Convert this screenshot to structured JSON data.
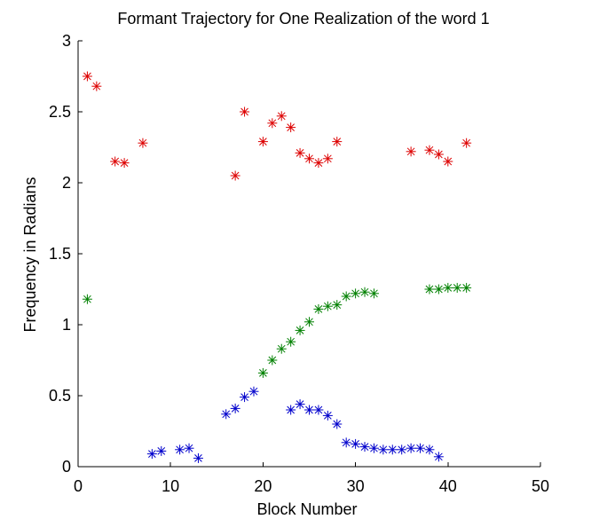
{
  "chart_data": {
    "type": "scatter",
    "title": "Formant Trajectory for One Realization of the word 1",
    "xlabel": "Block Number",
    "ylabel": "Frequency in Radians",
    "xlim": [
      0,
      50
    ],
    "ylim": [
      0,
      3
    ],
    "xticks": [
      0,
      10,
      20,
      30,
      40,
      50
    ],
    "yticks": [
      0,
      0.5,
      1,
      1.5,
      2,
      2.5,
      3
    ],
    "xtick_labels": [
      "0",
      "10",
      "20",
      "30",
      "40",
      "50"
    ],
    "ytick_labels": [
      "0",
      "0.5",
      "1",
      "1.5",
      "2",
      "2.5",
      "3"
    ],
    "grid": false,
    "legend": "none",
    "marker": "asterisk",
    "series": [
      {
        "color": "#dd0000",
        "points": [
          [
            1,
            2.75
          ],
          [
            2,
            2.68
          ],
          [
            4,
            2.15
          ],
          [
            5,
            2.14
          ],
          [
            7,
            2.28
          ],
          [
            17,
            2.05
          ],
          [
            18,
            2.5
          ],
          [
            20,
            2.29
          ],
          [
            21,
            2.42
          ],
          [
            22,
            2.47
          ],
          [
            23,
            2.39
          ],
          [
            24,
            2.21
          ],
          [
            25,
            2.17
          ],
          [
            26,
            2.14
          ],
          [
            27,
            2.17
          ],
          [
            28,
            2.29
          ],
          [
            36,
            2.22
          ],
          [
            38,
            2.23
          ],
          [
            39,
            2.2
          ],
          [
            40,
            2.15
          ],
          [
            42,
            2.28
          ]
        ]
      },
      {
        "color": "#008000",
        "points": [
          [
            1,
            1.18
          ],
          [
            20,
            0.66
          ],
          [
            21,
            0.75
          ],
          [
            22,
            0.83
          ],
          [
            23,
            0.88
          ],
          [
            24,
            0.96
          ],
          [
            25,
            1.02
          ],
          [
            26,
            1.11
          ],
          [
            27,
            1.13
          ],
          [
            28,
            1.14
          ],
          [
            29,
            1.2
          ],
          [
            30,
            1.22
          ],
          [
            31,
            1.23
          ],
          [
            32,
            1.22
          ],
          [
            38,
            1.25
          ],
          [
            39,
            1.25
          ],
          [
            40,
            1.26
          ],
          [
            41,
            1.26
          ],
          [
            42,
            1.26
          ]
        ]
      },
      {
        "color": "#0000cc",
        "points": [
          [
            8,
            0.09
          ],
          [
            9,
            0.11
          ],
          [
            11,
            0.12
          ],
          [
            12,
            0.13
          ],
          [
            13,
            0.06
          ],
          [
            16,
            0.37
          ],
          [
            17,
            0.41
          ],
          [
            18,
            0.49
          ],
          [
            19,
            0.53
          ],
          [
            23,
            0.4
          ],
          [
            24,
            0.44
          ],
          [
            25,
            0.4
          ],
          [
            26,
            0.4
          ],
          [
            27,
            0.36
          ],
          [
            28,
            0.3
          ],
          [
            29,
            0.17
          ],
          [
            30,
            0.16
          ],
          [
            31,
            0.14
          ],
          [
            32,
            0.13
          ],
          [
            33,
            0.12
          ],
          [
            34,
            0.12
          ],
          [
            35,
            0.12
          ],
          [
            36,
            0.13
          ],
          [
            37,
            0.13
          ],
          [
            38,
            0.12
          ],
          [
            39,
            0.07
          ]
        ]
      }
    ]
  }
}
